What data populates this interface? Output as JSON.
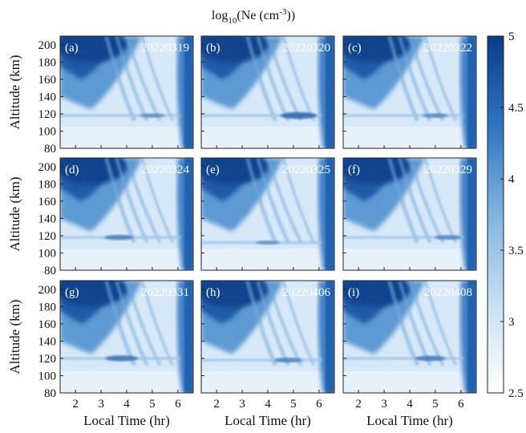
{
  "chart_data": {
    "type": "heatmap",
    "colorbar": {
      "title_main": "log",
      "title_sub": "10",
      "title_mid": "(Ne (cm",
      "title_sup": "-3",
      "title_end": "))",
      "range": [
        2.5,
        5
      ],
      "ticks": [
        "5",
        "4.5",
        "4",
        "3.5",
        "3",
        "2.5"
      ],
      "tick_values": [
        5,
        4.5,
        4,
        3.5,
        3,
        2.5
      ],
      "colors": [
        "#ffffff",
        "#c6e0f4",
        "#7fb4e0",
        "#2f74c0",
        "#0a3c8a"
      ]
    },
    "xlabel": "Local Time (hr)",
    "ylabel": "Altitude (km)",
    "xlim": [
      1.4,
      6.6
    ],
    "ylim": [
      80,
      210
    ],
    "xticks": [
      "2",
      "3",
      "4",
      "5",
      "6"
    ],
    "xtick_values": [
      2,
      3,
      4,
      5,
      6
    ],
    "yticks": [
      "80",
      "100",
      "120",
      "140",
      "160",
      "180",
      "200"
    ],
    "ytick_values": [
      80,
      100,
      120,
      140,
      160,
      180,
      200
    ],
    "panels": [
      {
        "letter": "(a)",
        "date": "20220319",
        "es_layer_km": 118,
        "es_strength": 0.25,
        "es_peak_hr": 5.0
      },
      {
        "letter": "(b)",
        "date": "20220320",
        "es_layer_km": 118,
        "es_strength": 0.75,
        "es_peak_hr": 5.2
      },
      {
        "letter": "(c)",
        "date": "20220322",
        "es_layer_km": 118,
        "es_strength": 0.3,
        "es_peak_hr": 5.0
      },
      {
        "letter": "(d)",
        "date": "20220324",
        "es_layer_km": 118,
        "es_strength": 0.45,
        "es_peak_hr": 3.7
      },
      {
        "letter": "(e)",
        "date": "20220325",
        "es_layer_km": 112,
        "es_strength": 0.2,
        "es_peak_hr": 4.0
      },
      {
        "letter": "(f)",
        "date": "20220329",
        "es_layer_km": 118,
        "es_strength": 0.35,
        "es_peak_hr": 5.5
      },
      {
        "letter": "(g)",
        "date": "20220331",
        "es_layer_km": 120,
        "es_strength": 0.6,
        "es_peak_hr": 3.8
      },
      {
        "letter": "(h)",
        "date": "20220406",
        "es_layer_km": 118,
        "es_strength": 0.4,
        "es_peak_hr": 4.8
      },
      {
        "letter": "(i)",
        "date": "20220408",
        "es_layer_km": 120,
        "es_strength": 0.5,
        "es_peak_hr": 4.8
      }
    ]
  }
}
